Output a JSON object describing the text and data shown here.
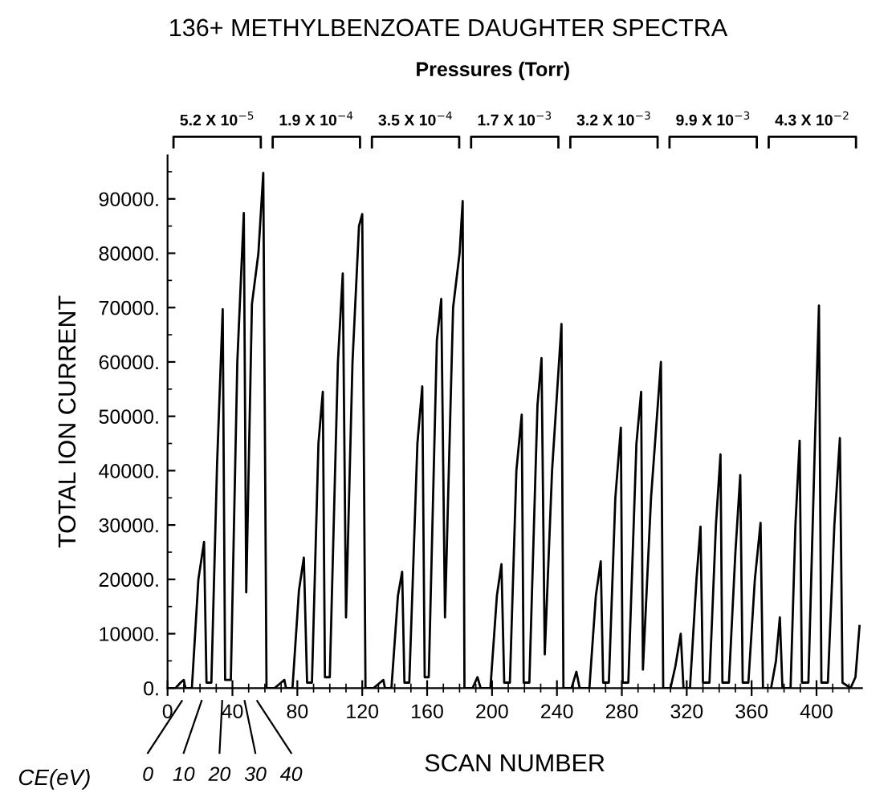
{
  "chart_data": {
    "type": "line",
    "title": "136+ METHYLBENZOATE DAUGHTER SPECTRA",
    "xlabel": "SCAN NUMBER",
    "ylabel": "TOTAL ION CURRENT",
    "x": [
      0,
      5,
      8,
      10,
      11,
      15,
      19,
      22.5,
      24,
      27,
      30.5,
      34,
      35.5,
      39,
      43,
      47,
      48.5,
      52,
      56,
      59,
      61,
      66,
      70,
      72,
      73,
      77,
      81,
      84,
      86,
      89,
      93,
      95.7,
      97,
      100,
      105,
      108,
      110,
      114,
      118,
      120,
      122,
      127,
      131,
      133,
      134,
      138,
      142,
      144.6,
      146,
      149,
      154,
      157,
      158.5,
      161,
      166,
      168.7,
      171,
      176,
      180,
      181.9,
      183,
      188,
      191,
      193,
      199,
      203,
      205.8,
      207.5,
      211,
      215,
      218.3,
      219.5,
      223,
      228,
      230.5,
      232.5,
      237,
      242.8,
      244,
      249,
      252,
      254,
      260,
      264,
      267,
      268.5,
      272,
      276,
      279.4,
      280.5,
      284,
      289,
      291.9,
      293,
      298,
      304.1,
      305.5,
      310,
      313,
      316.3,
      318,
      322,
      326,
      328.5,
      330,
      334,
      338,
      340.8,
      342,
      346,
      350,
      353,
      354.5,
      358,
      362,
      365.5,
      367,
      372,
      375,
      377.4,
      379,
      384,
      387,
      389.6,
      391,
      395,
      399,
      401.5,
      403,
      407,
      411,
      414.4,
      416,
      421,
      424,
      426.5
    ],
    "series": [
      {
        "color": "#000000",
        "values": [
          0,
          0,
          1000,
          1500,
          0,
          0,
          20000,
          26900,
          1000,
          1000,
          41000,
          69700,
          1500,
          1500,
          60000,
          87400,
          17600,
          70600,
          80000,
          94800,
          0,
          0,
          1000,
          1500,
          0,
          0,
          18000,
          24000,
          1000,
          1000,
          45000,
          54500,
          2000,
          2000,
          60000,
          76300,
          13000,
          60000,
          85000,
          87200,
          0,
          0,
          1000,
          1500,
          0,
          0,
          17000,
          21400,
          1000,
          1000,
          45000,
          55500,
          2000,
          2000,
          64000,
          71600,
          13000,
          70000,
          80000,
          89600,
          0,
          0,
          2000,
          0,
          0,
          17000,
          22800,
          1000,
          1000,
          40000,
          50300,
          1000,
          1000,
          52000,
          60700,
          6200,
          40000,
          67000,
          0,
          0,
          3000,
          0,
          0,
          17000,
          23300,
          1000,
          1000,
          35000,
          47900,
          1000,
          1000,
          45000,
          54500,
          3400,
          35000,
          60000,
          0,
          0,
          4000,
          10000,
          0,
          0,
          20000,
          29700,
          1000,
          1000,
          30000,
          43000,
          1000,
          1000,
          25000,
          39200,
          1000,
          1000,
          20000,
          30400,
          0,
          0,
          5000,
          13000,
          0,
          0,
          30000,
          45500,
          1000,
          1000,
          45000,
          70400,
          1000,
          1000,
          30000,
          46000,
          1000,
          0,
          2000,
          11400
        ]
      }
    ],
    "xlim": [
      0,
      428
    ],
    "xticks": [
      0,
      40,
      80,
      120,
      160,
      200,
      240,
      280,
      320,
      360,
      400
    ],
    "ylim": [
      0,
      98000
    ],
    "yticks": [
      {
        "value": 0,
        "label": "0."
      },
      {
        "value": 10000,
        "label": "10000."
      },
      {
        "value": 20000,
        "label": "20000."
      },
      {
        "value": 30000,
        "label": "30000."
      },
      {
        "value": 40000,
        "label": "40000."
      },
      {
        "value": 50000,
        "label": "50000."
      },
      {
        "value": 60000,
        "label": "60000."
      },
      {
        "value": 70000,
        "label": "70000."
      },
      {
        "value": 80000,
        "label": "80000."
      },
      {
        "value": 90000,
        "label": "90000."
      }
    ],
    "grid": false,
    "legend": false,
    "marker": "none",
    "line_style": "solid",
    "annotations": [
      "Pressures (Torr)",
      "5.2 X 10$^{−5}$",
      "1.9 X 10$^{−4}$",
      "3.5 X 10$^{−4}$",
      "1.7 X 10$^{−3}$",
      "3.2 X 10$^{−3}$",
      "9.9 X 10$^{−3}$",
      "4.3 X 10$^{−2}$",
      "CE(eV)",
      "0",
      "10",
      "20",
      "30",
      "40"
    ]
  }
}
